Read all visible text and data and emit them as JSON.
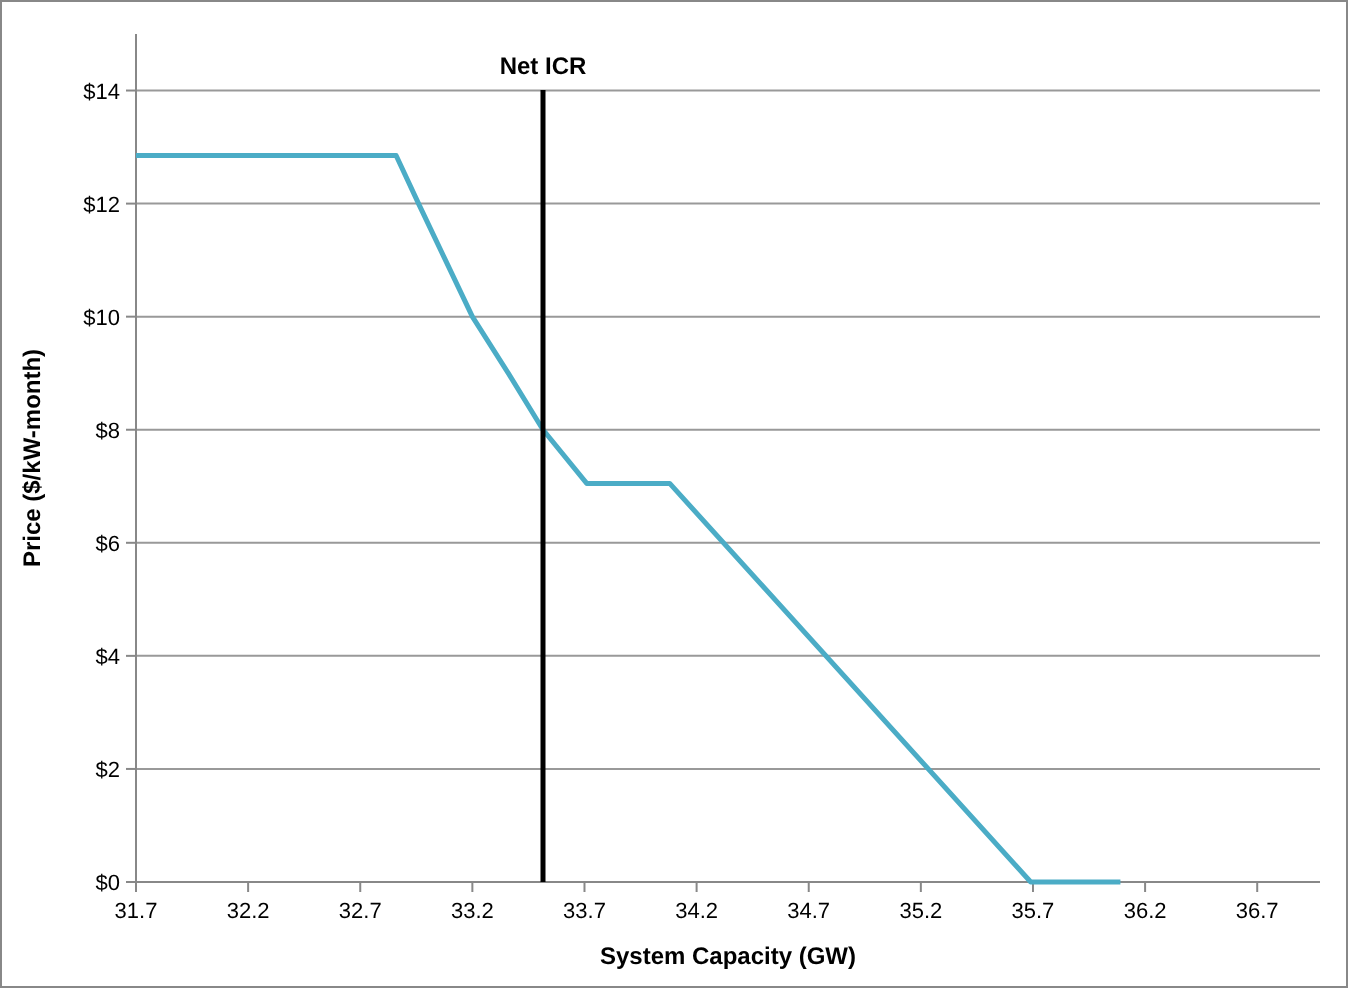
{
  "chart_data": {
    "type": "line",
    "xlabel": "System Capacity (GW)",
    "ylabel": "Price ($/kW-month)",
    "x": [
      31.7,
      32.86,
      32.96,
      33.08,
      33.2,
      33.36,
      33.515,
      33.71,
      34.08,
      35.69,
      36.09
    ],
    "series": [
      {
        "color": "#4bacc6",
        "values": [
          12.85,
          12.85,
          12,
          11,
          10,
          9,
          8,
          7.05,
          7.05,
          0,
          0
        ]
      }
    ],
    "xlim": [
      31.7,
      36.98
    ],
    "xticks": [
      {
        "value": 31.7,
        "label": "31.7"
      },
      {
        "value": 32.2,
        "label": "32.2"
      },
      {
        "value": 32.7,
        "label": "32.7"
      },
      {
        "value": 33.2,
        "label": "33.2"
      },
      {
        "value": 33.7,
        "label": "33.7"
      },
      {
        "value": 34.2,
        "label": "34.2"
      },
      {
        "value": 34.7,
        "label": "34.7"
      },
      {
        "value": 35.2,
        "label": "35.2"
      },
      {
        "value": 35.7,
        "label": "35.7"
      },
      {
        "value": 36.2,
        "label": "36.2"
      },
      {
        "value": 36.7,
        "label": "36.7"
      }
    ],
    "ylim": [
      0,
      15
    ],
    "yticks": [
      {
        "value": 0,
        "label": "$0"
      },
      {
        "value": 2,
        "label": "$2"
      },
      {
        "value": 4,
        "label": "$4"
      },
      {
        "value": 6,
        "label": "$6"
      },
      {
        "value": 8,
        "label": "$8"
      },
      {
        "value": 10,
        "label": "$10"
      },
      {
        "value": 12,
        "label": "$12"
      },
      {
        "value": 14,
        "label": "$14"
      }
    ],
    "grid": "y",
    "marker": "none",
    "line_style": "solid",
    "ref_lines": [
      {
        "axis": "x",
        "value": 33.515,
        "label": "Net ICR",
        "color": "#000000"
      }
    ]
  }
}
